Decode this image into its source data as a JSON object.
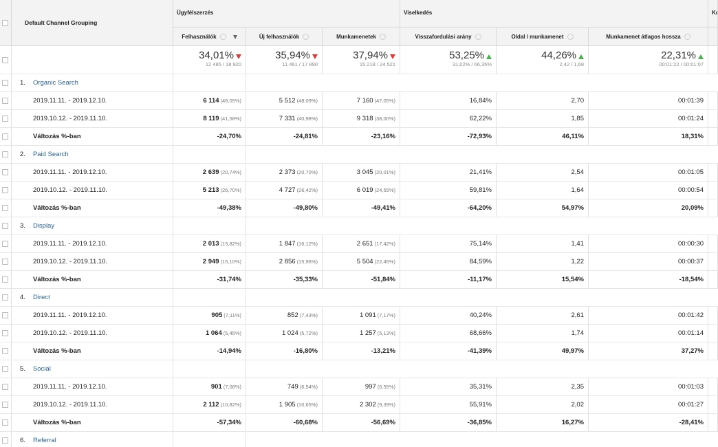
{
  "header": {
    "dimension": "Default Channel Grouping",
    "groups": [
      "Ügyfélszerzés",
      "Viselkedés",
      "Ko"
    ],
    "columns": [
      "Felhasználók",
      "Új felhasználók",
      "Munkamenetek",
      "Visszafordulási arány",
      "Oldal / munkamenet",
      "Munkamenet átlagos hossza"
    ]
  },
  "totals": [
    {
      "value": "34,01%",
      "detail": "12 485 / 18 920",
      "trend": "down"
    },
    {
      "value": "35,94%",
      "detail": "11 461 / 17 890",
      "trend": "down"
    },
    {
      "value": "37,94%",
      "detail": "15 218 / 24 521",
      "trend": "down"
    },
    {
      "value": "53,25%",
      "detail": "31,02% / 66,35%",
      "trend": "up"
    },
    {
      "value": "44,26%",
      "detail": "2,42 / 1,68",
      "trend": "up"
    },
    {
      "value": "22,31%",
      "detail": "00:01:22 / 00:01:07",
      "trend": "up"
    }
  ],
  "rows": [
    {
      "index": "1.",
      "name": "Organic Search",
      "periods": [
        {
          "label": "2019.11.11. - 2019.12.10.",
          "cells": [
            "6 114",
            "5 512",
            "7 160",
            "16,84%",
            "2,70",
            "00:01:39"
          ],
          "shares": [
            "(48,05%)",
            "(48,09%)",
            "(47,05%)"
          ]
        },
        {
          "label": "2019.10.12. - 2019.11.10.",
          "cells": [
            "8 119",
            "7 331",
            "9 318",
            "62,22%",
            "1,85",
            "00:01:24"
          ],
          "shares": [
            "(41,58%)",
            "(40,98%)",
            "(38,00%)"
          ]
        }
      ],
      "change": {
        "label": "Változás %-ban",
        "cells": [
          "-24,70%",
          "-24,81%",
          "-23,16%",
          "-72,93%",
          "46,11%",
          "18,31%"
        ]
      }
    },
    {
      "index": "2.",
      "name": "Paid Search",
      "periods": [
        {
          "label": "2019.11.11. - 2019.12.10.",
          "cells": [
            "2 639",
            "2 373",
            "3 045",
            "21,41%",
            "2,54",
            "00:01:05"
          ],
          "shares": [
            "(20,74%)",
            "(20,70%)",
            "(20,01%)"
          ]
        },
        {
          "label": "2019.10.12. - 2019.11.10.",
          "cells": [
            "5 213",
            "4 727",
            "6 019",
            "59,81%",
            "1,64",
            "00:00:54"
          ],
          "shares": [
            "(26,70%)",
            "(26,42%)",
            "(24,55%)"
          ]
        }
      ],
      "change": {
        "label": "Változás %-ban",
        "cells": [
          "-49,38%",
          "-49,80%",
          "-49,41%",
          "-64,20%",
          "54,97%",
          "20,09%"
        ]
      }
    },
    {
      "index": "3.",
      "name": "Display",
      "periods": [
        {
          "label": "2019.11.11. - 2019.12.10.",
          "cells": [
            "2 013",
            "1 847",
            "2 651",
            "75,14%",
            "1,41",
            "00:00:30"
          ],
          "shares": [
            "(15,82%)",
            "(16,12%)",
            "(17,42%)"
          ]
        },
        {
          "label": "2019.10.12. - 2019.11.10.",
          "cells": [
            "2 949",
            "2 856",
            "5 504",
            "84,59%",
            "1,22",
            "00:00:37"
          ],
          "shares": [
            "(15,10%)",
            "(15,96%)",
            "(22,45%)"
          ]
        }
      ],
      "change": {
        "label": "Változás %-ban",
        "cells": [
          "-31,74%",
          "-35,33%",
          "-51,84%",
          "-11,17%",
          "15,54%",
          "-18,54%"
        ]
      }
    },
    {
      "index": "4.",
      "name": "Direct",
      "periods": [
        {
          "label": "2019.11.11. - 2019.12.10.",
          "cells": [
            "905",
            "852",
            "1 091",
            "40,24%",
            "2,61",
            "00:01:42"
          ],
          "shares": [
            "(7,11%)",
            "(7,43%)",
            "(7,17%)"
          ]
        },
        {
          "label": "2019.10.12. - 2019.11.10.",
          "cells": [
            "1 064",
            "1 024",
            "1 257",
            "68,66%",
            "1,74",
            "00:01:14"
          ],
          "shares": [
            "(5,45%)",
            "(5,72%)",
            "(5,13%)"
          ]
        }
      ],
      "change": {
        "label": "Változás %-ban",
        "cells": [
          "-14,94%",
          "-16,80%",
          "-13,21%",
          "-41,39%",
          "49,97%",
          "37,27%"
        ]
      }
    },
    {
      "index": "5.",
      "name": "Social",
      "periods": [
        {
          "label": "2019.11.11. - 2019.12.10.",
          "cells": [
            "901",
            "749",
            "997",
            "35,31%",
            "2,35",
            "00:01:03"
          ],
          "shares": [
            "(7,08%)",
            "(6,54%)",
            "(6,55%)"
          ]
        },
        {
          "label": "2019.10.12. - 2019.11.10.",
          "cells": [
            "2 112",
            "1 905",
            "2 302",
            "55,91%",
            "2,02",
            "00:01:27"
          ],
          "shares": [
            "(10,82%)",
            "(10,65%)",
            "(9,39%)"
          ]
        }
      ],
      "change": {
        "label": "Változás %-ban",
        "cells": [
          "-57,34%",
          "-60,68%",
          "-56,69%",
          "-36,85%",
          "16,27%",
          "-28,41%"
        ]
      }
    },
    {
      "index": "6.",
      "name": "Referral"
    }
  ]
}
